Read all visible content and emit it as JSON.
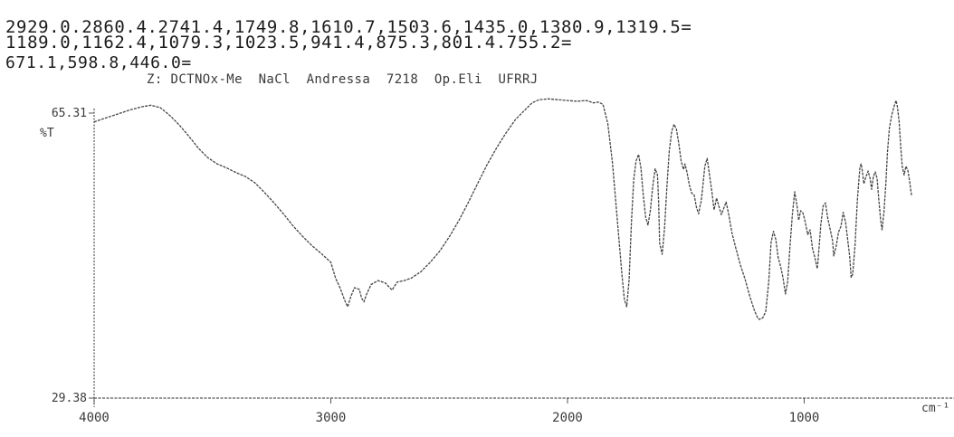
{
  "peak_list": {
    "line1": "2929.0.2860.4.2741.4,1749.8,1610.7,1503.6,1435.0,1380.9,1319.5=",
    "line2": "1189.0,1162.4,1079.3,1023.5,941.4,875.3,801.4.755.2=",
    "line3": "671.1,598.8,446.0="
  },
  "sample_label": "Z: DCTNOx-Me  NaCl  Andressa  7218  Op.Eli  UFRRJ",
  "chart_data": {
    "type": "line",
    "title": "",
    "xlabel": "cm⁻¹",
    "ylabel": "%T",
    "x_reversed": true,
    "xlim": [
      4000,
      400
    ],
    "ylim": [
      29.38,
      65.31
    ],
    "x_ticks": [
      {
        "value": 4000,
        "label": "4000"
      },
      {
        "value": 3000,
        "label": "3000"
      },
      {
        "value": 2000,
        "label": "2000"
      },
      {
        "value": 1000,
        "label": "1000"
      }
    ],
    "y_ticks": [
      {
        "value": 65.31,
        "label": "65.31"
      },
      {
        "value": 29.38,
        "label": "29.38"
      }
    ],
    "grid": false,
    "series": [
      {
        "name": "",
        "points": [
          [
            4000,
            64.2
          ],
          [
            3950,
            64.7
          ],
          [
            3900,
            65.2
          ],
          [
            3850,
            65.7
          ],
          [
            3800,
            66.1
          ],
          [
            3760,
            66.3
          ],
          [
            3720,
            66.0
          ],
          [
            3680,
            65.0
          ],
          [
            3640,
            63.8
          ],
          [
            3600,
            62.4
          ],
          [
            3560,
            60.9
          ],
          [
            3520,
            59.7
          ],
          [
            3480,
            58.9
          ],
          [
            3440,
            58.4
          ],
          [
            3400,
            57.8
          ],
          [
            3360,
            57.3
          ],
          [
            3320,
            56.5
          ],
          [
            3280,
            55.3
          ],
          [
            3240,
            54.0
          ],
          [
            3200,
            52.6
          ],
          [
            3160,
            51.1
          ],
          [
            3120,
            49.8
          ],
          [
            3080,
            48.6
          ],
          [
            3040,
            47.6
          ],
          [
            3000,
            46.5
          ],
          [
            2980,
            44.5
          ],
          [
            2960,
            43.2
          ],
          [
            2940,
            41.6
          ],
          [
            2929,
            40.9
          ],
          [
            2915,
            42.2
          ],
          [
            2900,
            43.3
          ],
          [
            2880,
            43.1
          ],
          [
            2870,
            42.0
          ],
          [
            2860,
            41.5
          ],
          [
            2850,
            42.4
          ],
          [
            2830,
            43.7
          ],
          [
            2800,
            44.2
          ],
          [
            2770,
            43.9
          ],
          [
            2741,
            43.0
          ],
          [
            2720,
            44.0
          ],
          [
            2690,
            44.2
          ],
          [
            2660,
            44.5
          ],
          [
            2620,
            45.3
          ],
          [
            2580,
            46.5
          ],
          [
            2540,
            47.9
          ],
          [
            2500,
            49.7
          ],
          [
            2460,
            51.7
          ],
          [
            2420,
            54.0
          ],
          [
            2380,
            56.4
          ],
          [
            2340,
            58.8
          ],
          [
            2300,
            60.9
          ],
          [
            2260,
            62.8
          ],
          [
            2220,
            64.5
          ],
          [
            2180,
            65.7
          ],
          [
            2150,
            66.6
          ],
          [
            2120,
            67.0
          ],
          [
            2080,
            67.1
          ],
          [
            2040,
            67.0
          ],
          [
            2000,
            66.9
          ],
          [
            1960,
            66.8
          ],
          [
            1920,
            66.9
          ],
          [
            1890,
            66.6
          ],
          [
            1870,
            66.7
          ],
          [
            1850,
            66.4
          ],
          [
            1830,
            64.0
          ],
          [
            1810,
            59.0
          ],
          [
            1790,
            52.0
          ],
          [
            1770,
            45.0
          ],
          [
            1760,
            41.8
          ],
          [
            1749.8,
            40.9
          ],
          [
            1740,
            44.2
          ],
          [
            1730,
            51.5
          ],
          [
            1720,
            57.0
          ],
          [
            1710,
            59.3
          ],
          [
            1700,
            60.1
          ],
          [
            1690,
            58.4
          ],
          [
            1680,
            55.0
          ],
          [
            1670,
            52.2
          ],
          [
            1660,
            51.2
          ],
          [
            1650,
            53.0
          ],
          [
            1640,
            56.0
          ],
          [
            1630,
            58.3
          ],
          [
            1620,
            57.5
          ],
          [
            1615,
            54.0
          ],
          [
            1610.7,
            48.9
          ],
          [
            1600,
            47.5
          ],
          [
            1590,
            50.8
          ],
          [
            1580,
            56.0
          ],
          [
            1570,
            60.5
          ],
          [
            1560,
            63.0
          ],
          [
            1550,
            63.9
          ],
          [
            1540,
            63.3
          ],
          [
            1530,
            61.5
          ],
          [
            1520,
            59.3
          ],
          [
            1510,
            58.2
          ],
          [
            1503.6,
            58.9
          ],
          [
            1495,
            57.8
          ],
          [
            1485,
            56.2
          ],
          [
            1475,
            55.2
          ],
          [
            1465,
            55.0
          ],
          [
            1455,
            53.4
          ],
          [
            1446,
            52.6
          ],
          [
            1440,
            53.6
          ],
          [
            1435,
            54.2
          ],
          [
            1428,
            56.2
          ],
          [
            1420,
            58.6
          ],
          [
            1410,
            59.6
          ],
          [
            1400,
            57.5
          ],
          [
            1390,
            55.4
          ],
          [
            1380.9,
            53.1
          ],
          [
            1370,
            54.6
          ],
          [
            1360,
            53.5
          ],
          [
            1350,
            52.5
          ],
          [
            1340,
            53.3
          ],
          [
            1330,
            54.1
          ],
          [
            1319.5,
            52.6
          ],
          [
            1305,
            50.2
          ],
          [
            1290,
            48.4
          ],
          [
            1270,
            46.2
          ],
          [
            1250,
            44.4
          ],
          [
            1230,
            42.2
          ],
          [
            1210,
            40.4
          ],
          [
            1195,
            39.4
          ],
          [
            1189,
            39.3
          ],
          [
            1175,
            39.5
          ],
          [
            1162.4,
            40.3
          ],
          [
            1150,
            44.0
          ],
          [
            1140,
            49.0
          ],
          [
            1130,
            50.4
          ],
          [
            1120,
            49.4
          ],
          [
            1110,
            47.1
          ],
          [
            1100,
            46.0
          ],
          [
            1090,
            44.6
          ],
          [
            1079.3,
            42.5
          ],
          [
            1070,
            44.0
          ],
          [
            1060,
            48.5
          ],
          [
            1050,
            52.5
          ],
          [
            1040,
            55.4
          ],
          [
            1030,
            53.5
          ],
          [
            1023.5,
            51.8
          ],
          [
            1015,
            53.0
          ],
          [
            1005,
            52.7
          ],
          [
            995,
            51.5
          ],
          [
            985,
            50.0
          ],
          [
            975,
            50.6
          ],
          [
            965,
            48.2
          ],
          [
            955,
            47.1
          ],
          [
            945,
            45.7
          ],
          [
            941.4,
            46.7
          ],
          [
            930,
            51.2
          ],
          [
            920,
            53.6
          ],
          [
            910,
            54.0
          ],
          [
            900,
            52.0
          ],
          [
            890,
            50.6
          ],
          [
            880,
            49.2
          ],
          [
            875.3,
            47.3
          ],
          [
            865,
            48.5
          ],
          [
            855,
            50.3
          ],
          [
            845,
            51.0
          ],
          [
            835,
            52.8
          ],
          [
            825,
            51.5
          ],
          [
            815,
            49.0
          ],
          [
            808,
            47.3
          ],
          [
            801.4,
            44.6
          ],
          [
            795,
            45.0
          ],
          [
            785,
            48.7
          ],
          [
            775,
            54.5
          ],
          [
            765,
            58.4
          ],
          [
            760,
            58.9
          ],
          [
            755.2,
            58.2
          ],
          [
            748,
            56.4
          ],
          [
            740,
            57.2
          ],
          [
            730,
            58.0
          ],
          [
            722,
            57.1
          ],
          [
            715,
            55.7
          ],
          [
            708,
            57.3
          ],
          [
            700,
            57.9
          ],
          [
            692,
            57.1
          ],
          [
            685,
            54.4
          ],
          [
            677,
            51.8
          ],
          [
            671.1,
            50.6
          ],
          [
            663,
            52.8
          ],
          [
            655,
            56.4
          ],
          [
            648,
            60.4
          ],
          [
            640,
            63.4
          ],
          [
            630,
            65.1
          ],
          [
            620,
            66.2
          ],
          [
            612,
            66.9
          ],
          [
            606,
            66.1
          ],
          [
            598.8,
            64.2
          ],
          [
            592,
            61.0
          ],
          [
            586,
            58.6
          ],
          [
            578,
            57.5
          ],
          [
            570,
            58.6
          ],
          [
            562,
            58.1
          ],
          [
            554,
            56.6
          ],
          [
            546,
            54.8
          ]
        ]
      }
    ]
  }
}
